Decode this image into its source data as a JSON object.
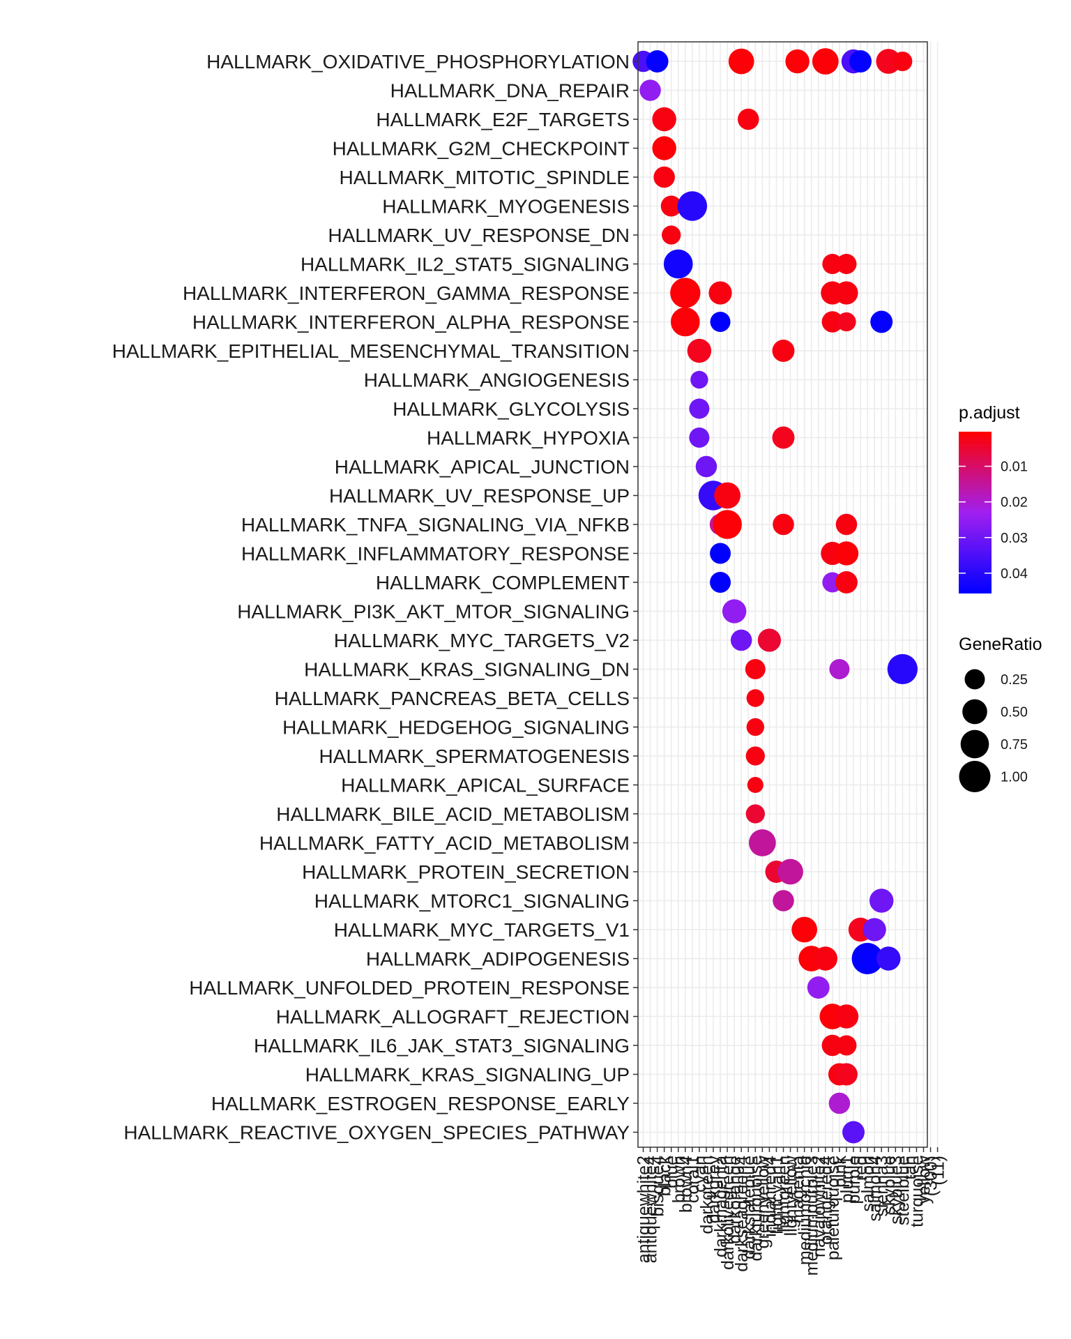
{
  "chart_data": {
    "type": "scatter",
    "title": "",
    "xlabel": "",
    "ylabel": "",
    "x_categories": [
      "antiquewhite2",
      "antiquewhite4",
      "bisque4",
      "black",
      "blue",
      "brown",
      "brown4",
      "coral1",
      "cyan",
      "darkgreen",
      "darkgrey",
      "darkmagenta",
      "darkolivegreen",
      "darkorange",
      "darkseagreen4",
      "darkslateblue",
      "darkturquoise",
      "greenyellow",
      "indianred4",
      "lightcyan1",
      "lightgreen",
      "lightyellow",
      "magenta",
      "mediumorchid",
      "mediumpurple3",
      "navajowhite2",
      "orangered4",
      "paleturquoise",
      "pink",
      "plum1",
      "purple",
      "red",
      "salmon",
      "salmon4",
      "sienna3",
      "skyblue",
      "skyblue3",
      "steelblue",
      "tan",
      "turquoise",
      "yellow",
      "(300)",
      "(11)"
    ],
    "y_categories": [
      "HALLMARK_OXIDATIVE_PHOSPHORYLATION",
      "HALLMARK_DNA_REPAIR",
      "HALLMARK_E2F_TARGETS",
      "HALLMARK_G2M_CHECKPOINT",
      "HALLMARK_MITOTIC_SPINDLE",
      "HALLMARK_MYOGENESIS",
      "HALLMARK_UV_RESPONSE_DN",
      "HALLMARK_IL2_STAT5_SIGNALING",
      "HALLMARK_INTERFERON_GAMMA_RESPONSE",
      "HALLMARK_INTERFERON_ALPHA_RESPONSE",
      "HALLMARK_EPITHELIAL_MESENCHYMAL_TRANSITION",
      "HALLMARK_ANGIOGENESIS",
      "HALLMARK_GLYCOLYSIS",
      "HALLMARK_HYPOXIA",
      "HALLMARK_APICAL_JUNCTION",
      "HALLMARK_UV_RESPONSE_UP",
      "HALLMARK_TNFA_SIGNALING_VIA_NFKB",
      "HALLMARK_INFLAMMATORY_RESPONSE",
      "HALLMARK_COMPLEMENT",
      "HALLMARK_PI3K_AKT_MTOR_SIGNALING",
      "HALLMARK_MYC_TARGETS_V2",
      "HALLMARK_KRAS_SIGNALING_DN",
      "HALLMARK_PANCREAS_BETA_CELLS",
      "HALLMARK_HEDGEHOG_SIGNALING",
      "HALLMARK_SPERMATOGENESIS",
      "HALLMARK_APICAL_SURFACE",
      "HALLMARK_BILE_ACID_METABOLISM",
      "HALLMARK_FATTY_ACID_METABOLISM",
      "HALLMARK_PROTEIN_SECRETION",
      "HALLMARK_MTORC1_SIGNALING",
      "HALLMARK_MYC_TARGETS_V1",
      "HALLMARK_ADIPOGENESIS",
      "HALLMARK_UNFOLDED_PROTEIN_RESPONSE",
      "HALLMARK_ALLOGRAFT_REJECTION",
      "HALLMARK_IL6_JAK_STAT3_SIGNALING",
      "HALLMARK_KRAS_SIGNALING_UP",
      "HALLMARK_ESTROGEN_RESPONSE_EARLY",
      "HALLMARK_REACTIVE_OXYGEN_SPECIES_PATHWAY"
    ],
    "points": [
      {
        "x": 0,
        "y": 0,
        "ratio": 0.3,
        "padj": 0.035
      },
      {
        "x": 2,
        "y": 0,
        "ratio": 0.35,
        "padj": 0.045
      },
      {
        "x": 14,
        "y": 0,
        "ratio": 0.55,
        "padj": 0.001
      },
      {
        "x": 22,
        "y": 0,
        "ratio": 0.45,
        "padj": 0.001
      },
      {
        "x": 26,
        "y": 0,
        "ratio": 0.6,
        "padj": 0.001
      },
      {
        "x": 30,
        "y": 0,
        "ratio": 0.45,
        "padj": 0.035
      },
      {
        "x": 31,
        "y": 0,
        "ratio": 0.35,
        "padj": 0.045
      },
      {
        "x": 35,
        "y": 0,
        "ratio": 0.5,
        "padj": 0.003
      },
      {
        "x": 37,
        "y": 0,
        "ratio": 0.22,
        "padj": 0.002
      },
      {
        "x": 1,
        "y": 1,
        "ratio": 0.3,
        "padj": 0.025
      },
      {
        "x": 3,
        "y": 2,
        "ratio": 0.45,
        "padj": 0.002
      },
      {
        "x": 15,
        "y": 2,
        "ratio": 0.3,
        "padj": 0.002
      },
      {
        "x": 3,
        "y": 3,
        "ratio": 0.45,
        "padj": 0.001
      },
      {
        "x": 3,
        "y": 4,
        "ratio": 0.3,
        "padj": 0.002
      },
      {
        "x": 4,
        "y": 5,
        "ratio": 0.28,
        "padj": 0.002
      },
      {
        "x": 7,
        "y": 5,
        "ratio": 0.85,
        "padj": 0.04
      },
      {
        "x": 4,
        "y": 6,
        "ratio": 0.2,
        "padj": 0.002
      },
      {
        "x": 5,
        "y": 7,
        "ratio": 0.8,
        "padj": 0.043
      },
      {
        "x": 27,
        "y": 7,
        "ratio": 0.25,
        "padj": 0.002
      },
      {
        "x": 29,
        "y": 7,
        "ratio": 0.25,
        "padj": 0.002
      },
      {
        "x": 6,
        "y": 8,
        "ratio": 0.9,
        "padj": 0.001
      },
      {
        "x": 11,
        "y": 8,
        "ratio": 0.4,
        "padj": 0.002
      },
      {
        "x": 27,
        "y": 8,
        "ratio": 0.4,
        "padj": 0.002
      },
      {
        "x": 29,
        "y": 8,
        "ratio": 0.4,
        "padj": 0.002
      },
      {
        "x": 6,
        "y": 9,
        "ratio": 0.8,
        "padj": 0.001
      },
      {
        "x": 11,
        "y": 9,
        "ratio": 0.25,
        "padj": 0.046
      },
      {
        "x": 27,
        "y": 9,
        "ratio": 0.3,
        "padj": 0.002
      },
      {
        "x": 29,
        "y": 9,
        "ratio": 0.2,
        "padj": 0.003
      },
      {
        "x": 34,
        "y": 9,
        "ratio": 0.35,
        "padj": 0.045
      },
      {
        "x": 8,
        "y": 10,
        "ratio": 0.45,
        "padj": 0.003
      },
      {
        "x": 20,
        "y": 10,
        "ratio": 0.35,
        "padj": 0.002
      },
      {
        "x": 8,
        "y": 11,
        "ratio": 0.15,
        "padj": 0.03
      },
      {
        "x": 8,
        "y": 12,
        "ratio": 0.25,
        "padj": 0.03
      },
      {
        "x": 8,
        "y": 13,
        "ratio": 0.25,
        "padj": 0.03
      },
      {
        "x": 20,
        "y": 13,
        "ratio": 0.35,
        "padj": 0.003
      },
      {
        "x": 9,
        "y": 14,
        "ratio": 0.3,
        "padj": 0.03
      },
      {
        "x": 10,
        "y": 15,
        "ratio": 0.85,
        "padj": 0.038
      },
      {
        "x": 12,
        "y": 15,
        "ratio": 0.6,
        "padj": 0.002
      },
      {
        "x": 11,
        "y": 16,
        "ratio": 0.3,
        "padj": 0.015
      },
      {
        "x": 12,
        "y": 16,
        "ratio": 0.8,
        "padj": 0.001
      },
      {
        "x": 20,
        "y": 16,
        "ratio": 0.3,
        "padj": 0.002
      },
      {
        "x": 29,
        "y": 16,
        "ratio": 0.3,
        "padj": 0.002
      },
      {
        "x": 11,
        "y": 17,
        "ratio": 0.28,
        "padj": 0.046
      },
      {
        "x": 27,
        "y": 17,
        "ratio": 0.4,
        "padj": 0.002
      },
      {
        "x": 29,
        "y": 17,
        "ratio": 0.45,
        "padj": 0.001
      },
      {
        "x": 11,
        "y": 18,
        "ratio": 0.28,
        "padj": 0.046
      },
      {
        "x": 27,
        "y": 18,
        "ratio": 0.25,
        "padj": 0.025
      },
      {
        "x": 29,
        "y": 18,
        "ratio": 0.35,
        "padj": 0.002
      },
      {
        "x": 13,
        "y": 19,
        "ratio": 0.45,
        "padj": 0.025
      },
      {
        "x": 14,
        "y": 20,
        "ratio": 0.3,
        "padj": 0.03
      },
      {
        "x": 18,
        "y": 20,
        "ratio": 0.4,
        "padj": 0.005
      },
      {
        "x": 16,
        "y": 21,
        "ratio": 0.25,
        "padj": 0.002
      },
      {
        "x": 28,
        "y": 21,
        "ratio": 0.25,
        "padj": 0.02
      },
      {
        "x": 37,
        "y": 21,
        "ratio": 0.9,
        "padj": 0.04
      },
      {
        "x": 16,
        "y": 22,
        "ratio": 0.15,
        "padj": 0.002
      },
      {
        "x": 16,
        "y": 23,
        "ratio": 0.15,
        "padj": 0.002
      },
      {
        "x": 16,
        "y": 24,
        "ratio": 0.2,
        "padj": 0.002
      },
      {
        "x": 16,
        "y": 25,
        "ratio": 0.1,
        "padj": 0.002
      },
      {
        "x": 16,
        "y": 26,
        "ratio": 0.2,
        "padj": 0.005
      },
      {
        "x": 17,
        "y": 27,
        "ratio": 0.65,
        "padj": 0.015
      },
      {
        "x": 19,
        "y": 28,
        "ratio": 0.35,
        "padj": 0.005
      },
      {
        "x": 21,
        "y": 28,
        "ratio": 0.55,
        "padj": 0.015
      },
      {
        "x": 20,
        "y": 29,
        "ratio": 0.3,
        "padj": 0.015
      },
      {
        "x": 34,
        "y": 29,
        "ratio": 0.45,
        "padj": 0.03
      },
      {
        "x": 23,
        "y": 30,
        "ratio": 0.55,
        "padj": 0.001
      },
      {
        "x": 31,
        "y": 30,
        "ratio": 0.45,
        "padj": 0.003
      },
      {
        "x": 33,
        "y": 30,
        "ratio": 0.4,
        "padj": 0.03
      },
      {
        "x": 24,
        "y": 31,
        "ratio": 0.55,
        "padj": 0.001
      },
      {
        "x": 26,
        "y": 31,
        "ratio": 0.45,
        "padj": 0.002
      },
      {
        "x": 32,
        "y": 31,
        "ratio": 1.0,
        "padj": 0.045
      },
      {
        "x": 35,
        "y": 31,
        "ratio": 0.45,
        "padj": 0.038
      },
      {
        "x": 25,
        "y": 32,
        "ratio": 0.35,
        "padj": 0.025
      },
      {
        "x": 27,
        "y": 33,
        "ratio": 0.55,
        "padj": 0.001
      },
      {
        "x": 29,
        "y": 33,
        "ratio": 0.45,
        "padj": 0.002
      },
      {
        "x": 27,
        "y": 34,
        "ratio": 0.3,
        "padj": 0.002
      },
      {
        "x": 29,
        "y": 34,
        "ratio": 0.25,
        "padj": 0.002
      },
      {
        "x": 28,
        "y": 35,
        "ratio": 0.35,
        "padj": 0.002
      },
      {
        "x": 29,
        "y": 35,
        "ratio": 0.35,
        "padj": 0.003
      },
      {
        "x": 28,
        "y": 36,
        "ratio": 0.3,
        "padj": 0.02
      },
      {
        "x": 30,
        "y": 37,
        "ratio": 0.35,
        "padj": 0.033
      }
    ],
    "color_legend": {
      "title": "p.adjust",
      "ticks": [
        0.01,
        0.02,
        0.03,
        0.04
      ],
      "tick_labels": [
        "0.01",
        "0.02",
        "0.03",
        "0.04"
      ],
      "min": 0.0003,
      "max": 0.0457,
      "low_color": "#ff0000",
      "high_color": "#0000ff",
      "mid_color": "#a020f0"
    },
    "size_legend": {
      "title": "GeneRatio",
      "values": [
        0.25,
        0.5,
        0.75,
        1.0
      ],
      "labels": [
        "0.25",
        "0.50",
        "0.75",
        "1.00"
      ]
    },
    "grid": true,
    "legend_position": "right"
  }
}
